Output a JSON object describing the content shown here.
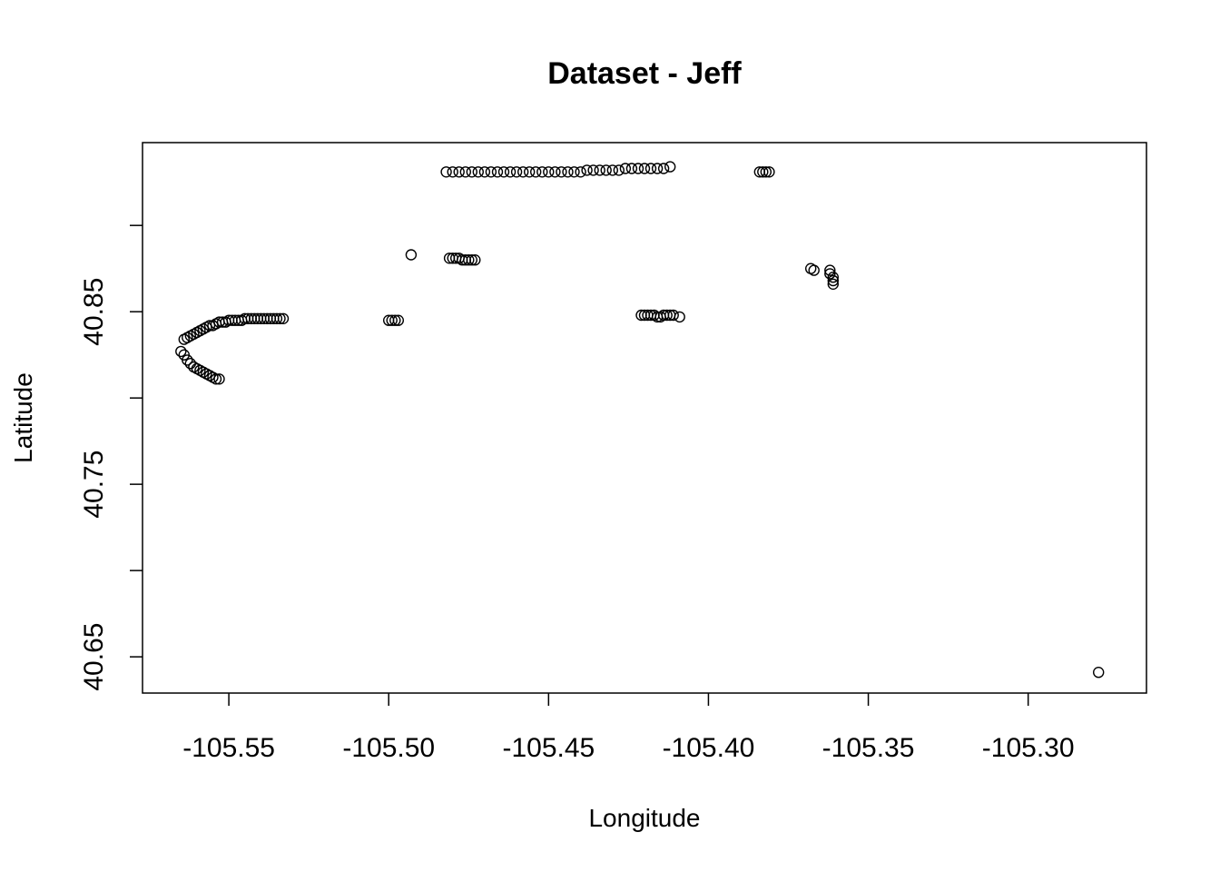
{
  "chart_data": {
    "type": "scatter",
    "title": "Dataset - Jeff",
    "xlabel": "Longitude",
    "ylabel": "Latitude",
    "xlim": [
      -105.577,
      -105.263
    ],
    "ylim": [
      40.629,
      40.948
    ],
    "x_ticks": [
      -105.55,
      -105.5,
      -105.45,
      -105.4,
      -105.35,
      -105.3
    ],
    "x_tick_labels": [
      "-105.55",
      "-105.50",
      "-105.45",
      "-105.40",
      "-105.35",
      "-105.30"
    ],
    "y_ticks": [
      40.65,
      40.7,
      40.75,
      40.8,
      40.85,
      40.9
    ],
    "y_tick_labels": [
      "40.65",
      "",
      "40.75",
      "",
      "40.85",
      ""
    ],
    "grid": false,
    "legend": "none",
    "marker": "open-circle",
    "point_color": "#000000",
    "series": [
      {
        "x": [
          -105.565,
          -105.564,
          -105.563,
          -105.562,
          -105.561,
          -105.56,
          -105.559,
          -105.558,
          -105.557,
          -105.556,
          -105.555,
          -105.554,
          -105.553,
          -105.564,
          -105.563,
          -105.562,
          -105.561,
          -105.56,
          -105.559,
          -105.558,
          -105.557,
          -105.556,
          -105.555,
          -105.554,
          -105.553,
          -105.552,
          -105.551,
          -105.55,
          -105.549,
          -105.548,
          -105.547,
          -105.546,
          -105.545,
          -105.544,
          -105.543,
          -105.542,
          -105.541,
          -105.54,
          -105.539,
          -105.538,
          -105.537,
          -105.536,
          -105.535,
          -105.534,
          -105.533,
          -105.5,
          -105.499,
          -105.498,
          -105.497,
          -105.493,
          -105.481,
          -105.48,
          -105.479,
          -105.478,
          -105.477,
          -105.476,
          -105.475,
          -105.474,
          -105.473,
          -105.482,
          -105.48,
          -105.478,
          -105.476,
          -105.474,
          -105.472,
          -105.47,
          -105.468,
          -105.466,
          -105.464,
          -105.462,
          -105.46,
          -105.458,
          -105.456,
          -105.454,
          -105.452,
          -105.45,
          -105.448,
          -105.446,
          -105.444,
          -105.442,
          -105.44,
          -105.438,
          -105.436,
          -105.434,
          -105.432,
          -105.43,
          -105.428,
          -105.426,
          -105.424,
          -105.422,
          -105.42,
          -105.418,
          -105.416,
          -105.414,
          -105.412,
          -105.421,
          -105.42,
          -105.419,
          -105.418,
          -105.417,
          -105.416,
          -105.415,
          -105.414,
          -105.413,
          -105.412,
          -105.411,
          -105.409,
          -105.384,
          -105.383,
          -105.382,
          -105.381,
          -105.368,
          -105.367,
          -105.362,
          -105.362,
          -105.361,
          -105.361,
          -105.361,
          -105.278
        ],
        "y": [
          40.827,
          40.825,
          40.822,
          40.82,
          40.818,
          40.817,
          40.816,
          40.815,
          40.814,
          40.813,
          40.812,
          40.811,
          40.811,
          40.834,
          40.835,
          40.836,
          40.837,
          40.838,
          40.839,
          40.84,
          40.841,
          40.842,
          40.842,
          40.843,
          40.844,
          40.844,
          40.844,
          40.845,
          40.845,
          40.845,
          40.845,
          40.845,
          40.846,
          40.846,
          40.846,
          40.846,
          40.846,
          40.846,
          40.846,
          40.846,
          40.846,
          40.846,
          40.846,
          40.846,
          40.846,
          40.845,
          40.845,
          40.845,
          40.845,
          40.883,
          40.881,
          40.881,
          40.881,
          40.881,
          40.88,
          40.88,
          40.88,
          40.88,
          40.88,
          40.931,
          40.931,
          40.931,
          40.931,
          40.931,
          40.931,
          40.931,
          40.931,
          40.931,
          40.931,
          40.931,
          40.931,
          40.931,
          40.931,
          40.931,
          40.931,
          40.931,
          40.931,
          40.931,
          40.931,
          40.931,
          40.931,
          40.932,
          40.932,
          40.932,
          40.932,
          40.932,
          40.932,
          40.933,
          40.933,
          40.933,
          40.933,
          40.933,
          40.933,
          40.933,
          40.934,
          40.848,
          40.848,
          40.848,
          40.848,
          40.848,
          40.847,
          40.847,
          40.848,
          40.848,
          40.848,
          40.848,
          40.847,
          40.931,
          40.931,
          40.931,
          40.931,
          40.875,
          40.874,
          40.874,
          40.872,
          40.87,
          40.868,
          40.866,
          40.641
        ]
      }
    ]
  }
}
